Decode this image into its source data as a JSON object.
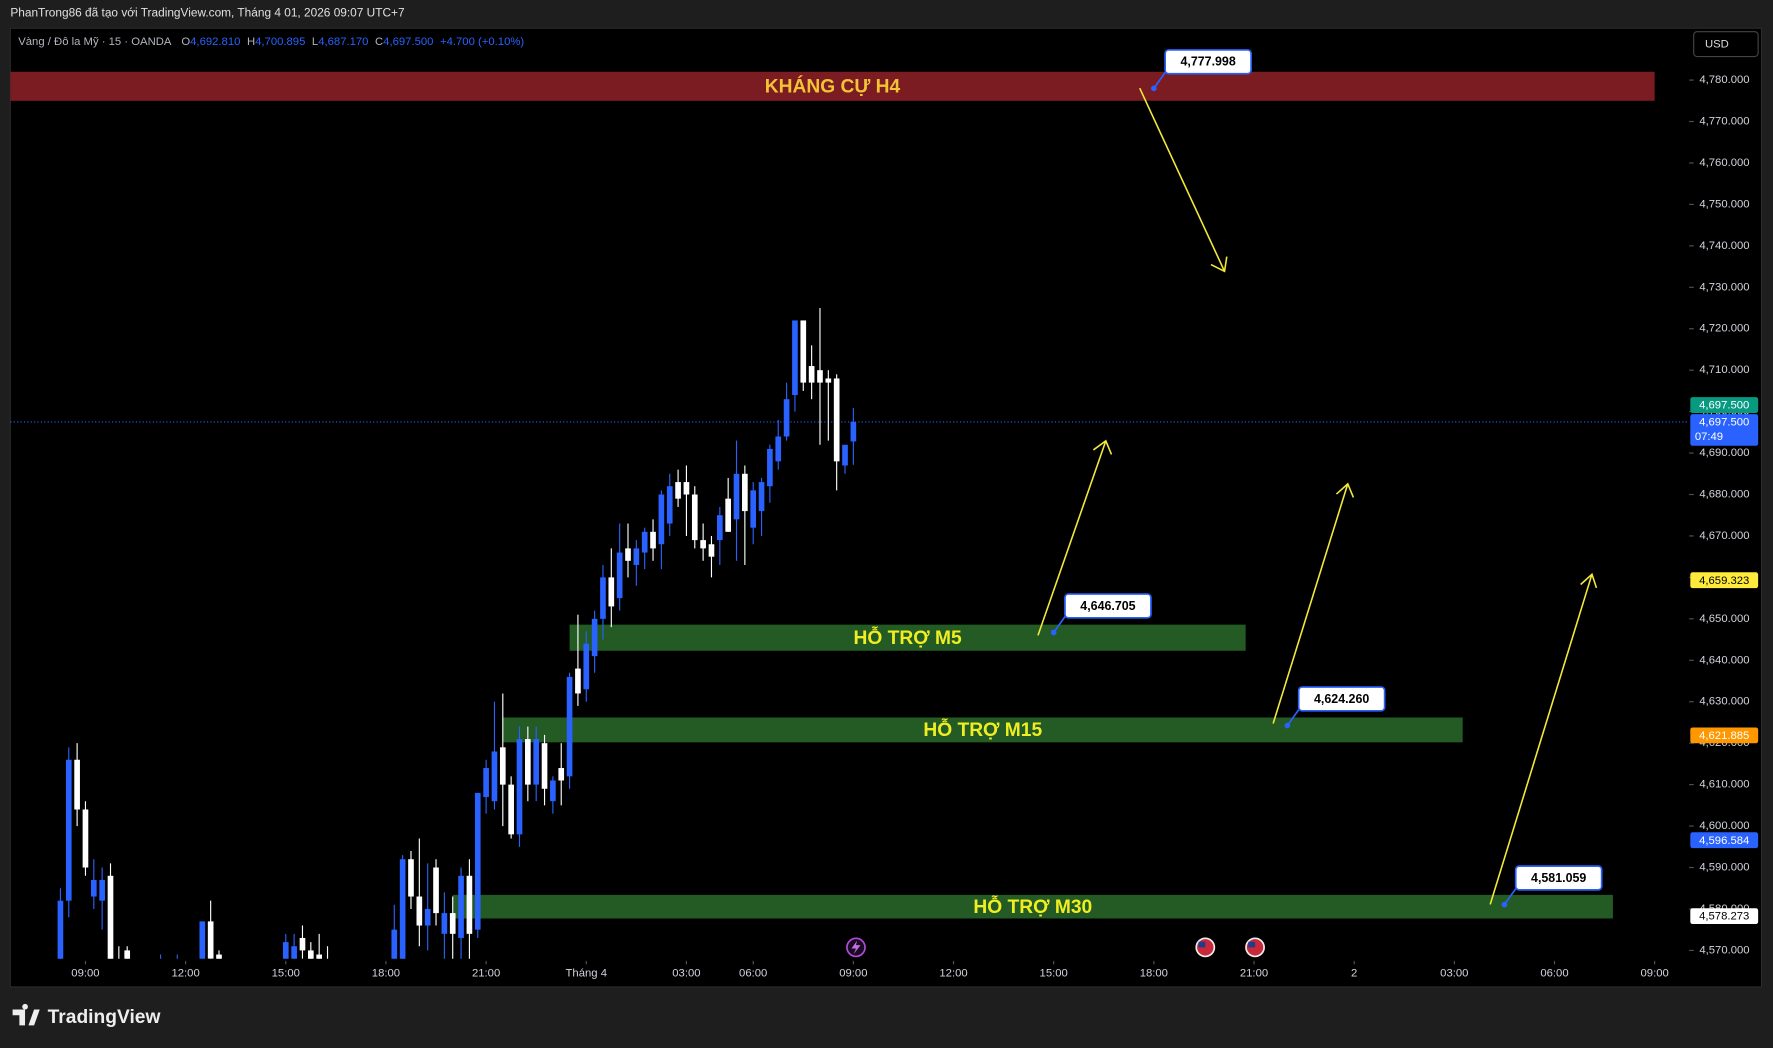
{
  "header": "PhanTrong86 đã tạo với TradingView.com, Tháng 4 01, 2026 09:07 UTC+7",
  "brand": "TradingView",
  "currency": "USD",
  "chart_data": {
    "type": "candlestick",
    "symbol": "Vàng / Đô la Mỹ · 15 · OANDA",
    "ohlc_legend": [
      {
        "key": "O",
        "value": "4,692.810"
      },
      {
        "key": "H",
        "value": "4,700.895"
      },
      {
        "key": "L",
        "value": "4,687.170"
      },
      {
        "key": "C",
        "value": "4,697.500"
      }
    ],
    "change": "+4.700 (+0.10%)",
    "up_color": "#2962ff",
    "down_color": "#ffffff",
    "grid": false,
    "x": [
      -3,
      -2,
      -1,
      0,
      1,
      2,
      3,
      4,
      5,
      9,
      11,
      14,
      15,
      16,
      24,
      25,
      26,
      27,
      28,
      29,
      37,
      38,
      39,
      40,
      41,
      42,
      43,
      44,
      45,
      46,
      47,
      48,
      49,
      50,
      51,
      52,
      53,
      54,
      55,
      56,
      57,
      58,
      59,
      60,
      61,
      62,
      63,
      64,
      65,
      66,
      67,
      68,
      69,
      70,
      71,
      72,
      73,
      74,
      75,
      76,
      77,
      78,
      79,
      80,
      81,
      82,
      83,
      84,
      85,
      86,
      87,
      88,
      89,
      90,
      91,
      92
    ],
    "open": [
      4565,
      4582,
      4616,
      4604,
      4583,
      4582,
      4588,
      4568,
      4570,
      4566,
      4566,
      4562,
      4577,
      4569,
      4565,
      4566,
      4573,
      4570,
      4569,
      4567,
      4564,
      4566,
      4592,
      4583,
      4576,
      4590,
      4574,
      4579,
      4573,
      4588,
      4575,
      4607,
      4606,
      4619,
      4610,
      4598,
      4621,
      4610,
      4620,
      4606,
      4614,
      4612,
      4638,
      4633,
      4641,
      4650,
      4660,
      4655,
      4667,
      4663,
      4666,
      4671,
      4668,
      4673,
      4683,
      4683,
      4680,
      4669,
      4668,
      4669,
      4679,
      4674,
      4685,
      4672,
      4676,
      4682,
      4688,
      4694,
      4704,
      4722,
      4711,
      4710,
      4708,
      4708,
      4687,
      4692.81
    ],
    "high": [
      4585,
      4619,
      4620,
      4606,
      4592,
      4590,
      4591,
      4571,
      4571,
      4569,
      4569,
      4577,
      4582,
      4570,
      4574,
      4574,
      4576,
      4572,
      4574,
      4571,
      4581,
      4593,
      4594,
      4597,
      4591,
      4592,
      4584,
      4583,
      4590,
      4592,
      4608,
      4616,
      4630,
      4632,
      4612,
      4624,
      4624,
      4624,
      4622,
      4612,
      4620,
      4637,
      4651,
      4647,
      4652,
      4663,
      4667,
      4673,
      4673,
      4669,
      4672,
      4674,
      4681,
      4685,
      4686,
      4687,
      4682,
      4673,
      4670,
      4677,
      4684,
      4693,
      4687,
      4683,
      4684,
      4692,
      4698,
      4707,
      4722,
      4722,
      4716,
      4725,
      4710,
      4709,
      4691,
      4700.895
    ],
    "low": [
      4560,
      4578,
      4600,
      4588,
      4580,
      4575,
      4560,
      4560,
      4562,
      4565,
      4565,
      4560,
      4562,
      4565,
      4562,
      4563,
      4568,
      4564,
      4564,
      4563,
      4560,
      4560,
      4580,
      4571,
      4570,
      4576,
      4567,
      4566,
      4565,
      4566,
      4573,
      4603,
      4604,
      4600,
      4597,
      4595,
      4606,
      4606,
      4605,
      4603,
      4605,
      4609,
      4629,
      4630,
      4637,
      4645,
      4648,
      4652,
      4660,
      4658,
      4662,
      4664,
      4662,
      4670,
      4677,
      4670,
      4667,
      4664,
      4660,
      4663,
      4671,
      4664,
      4663,
      4668,
      4670,
      4678,
      4686,
      4693,
      4700,
      4705,
      4703,
      4692,
      4693,
      4681,
      4685,
      4687.17
    ],
    "close": [
      4582,
      4616,
      4604,
      4590,
      4587,
      4587,
      4565,
      4563,
      4566,
      4568,
      4567,
      4577,
      4568,
      4567,
      4572,
      4571,
      4570,
      4567,
      4566,
      4566,
      4575,
      4592,
      4583,
      4576,
      4580,
      4579,
      4579,
      4574,
      4588,
      4574,
      4608,
      4614,
      4618,
      4610,
      4598,
      4621,
      4610,
      4621,
      4609,
      4611,
      4611,
      4636,
      4632,
      4644,
      4650,
      4660,
      4653,
      4666,
      4664,
      4667,
      4671,
      4667,
      4680,
      4682,
      4679,
      4680,
      4669,
      4667,
      4665,
      4675,
      4671,
      4685,
      4676,
      4681,
      4683,
      4691,
      4694,
      4703,
      4722,
      4707,
      4707,
      4707,
      4707,
      4688,
      4692,
      4697.5
    ],
    "xlim": [
      -9,
      192
    ],
    "xticks": [
      {
        "value": 0,
        "label": "09:00"
      },
      {
        "value": 12,
        "label": "12:00"
      },
      {
        "value": 24,
        "label": "15:00"
      },
      {
        "value": 36,
        "label": "18:00"
      },
      {
        "value": 48,
        "label": "21:00"
      },
      {
        "value": 60,
        "label": "Tháng 4"
      },
      {
        "value": 72,
        "label": "03:00"
      },
      {
        "value": 80,
        "label": "06:00"
      },
      {
        "value": 92,
        "label": "09:00"
      },
      {
        "value": 104,
        "label": "12:00"
      },
      {
        "value": 116,
        "label": "15:00"
      },
      {
        "value": 128,
        "label": "18:00"
      },
      {
        "value": 140,
        "label": "21:00"
      },
      {
        "value": 152,
        "label": "2"
      },
      {
        "value": 164,
        "label": "03:00"
      },
      {
        "value": 176,
        "label": "06:00"
      },
      {
        "value": 188,
        "label": "09:00"
      }
    ],
    "ylim": [
      4568,
      4792.5
    ],
    "yticks": [
      {
        "value": 4780,
        "label": "4,780.000"
      },
      {
        "value": 4770,
        "label": "4,770.000"
      },
      {
        "value": 4760,
        "label": "4,760.000"
      },
      {
        "value": 4750,
        "label": "4,750.000"
      },
      {
        "value": 4740,
        "label": "4,740.000"
      },
      {
        "value": 4730,
        "label": "4,730.000"
      },
      {
        "value": 4720,
        "label": "4,720.000"
      },
      {
        "value": 4710,
        "label": "4,710.000"
      },
      {
        "value": 4700,
        "label": "4,700.000"
      },
      {
        "value": 4690,
        "label": "4,690.000"
      },
      {
        "value": 4680,
        "label": "4,680.000"
      },
      {
        "value": 4670,
        "label": "4,670.000"
      },
      {
        "value": 4660,
        "label": "4,660.000"
      },
      {
        "value": 4650,
        "label": "4,650.000"
      },
      {
        "value": 4640,
        "label": "4,640.000"
      },
      {
        "value": 4630,
        "label": "4,630.000"
      },
      {
        "value": 4620,
        "label": "4,620.000"
      },
      {
        "value": 4610,
        "label": "4,610.000"
      },
      {
        "value": 4600,
        "label": "4,600.000"
      },
      {
        "value": 4590,
        "label": "4,590.000"
      },
      {
        "value": 4580,
        "label": "4,580.000"
      },
      {
        "value": 4570,
        "label": "4,570.000"
      }
    ],
    "zones": [
      {
        "label": "KHÁNG CỰ H4",
        "from": 4775,
        "to": 4782,
        "x_start": -9,
        "x_end": 188,
        "color": "#7a1c22",
        "text_color": "#f2c335"
      },
      {
        "label": "HỖ TRỢ M5",
        "from": 4642.3,
        "to": 4648.6,
        "x_start": 58,
        "x_end": 139,
        "color": "#245a24",
        "text_color": "#eeee22"
      },
      {
        "label": "HỖ TRỢ M15",
        "from": 4620.2,
        "to": 4626.2,
        "x_start": 50,
        "x_end": 165,
        "color": "#245a24",
        "text_color": "#eeee22"
      },
      {
        "label": "HỖ TRỢ M30",
        "from": 4577.7,
        "to": 4583.4,
        "x_start": 44,
        "x_end": 183,
        "color": "#245a24",
        "text_color": "#eeee22"
      }
    ],
    "callouts": [
      {
        "value": 4777.998,
        "label": "4,777.998",
        "x": 128
      },
      {
        "value": 4646.705,
        "label": "4,646.705",
        "x": 116
      },
      {
        "value": 4624.26,
        "label": "4,624.260",
        "x": 144
      },
      {
        "value": 4581.059,
        "label": "4,581.059",
        "x": 170
      }
    ],
    "badges": [
      {
        "value": 4697.5,
        "label": "4,697.500",
        "sublabel": "07:49",
        "color": "#2962ff",
        "text_color": "#ffffff"
      },
      {
        "value": 4697.5,
        "label": "4,697.500",
        "color": "#089981",
        "text_color": "#ffffff"
      },
      {
        "value": 4659.323,
        "label": "4,659.323",
        "color": "#ffeb3b",
        "text_color": "#000000"
      },
      {
        "value": 4621.885,
        "label": "4,621.885",
        "color": "#ff9800",
        "text_color": "#ffffff"
      },
      {
        "value": 4596.584,
        "label": "4,596.584",
        "color": "#2962ff",
        "text_color": "#ffffff"
      },
      {
        "value": 4578.273,
        "label": "4,578.273",
        "color": "#ffffff",
        "text_color": "#000000"
      }
    ]
  }
}
